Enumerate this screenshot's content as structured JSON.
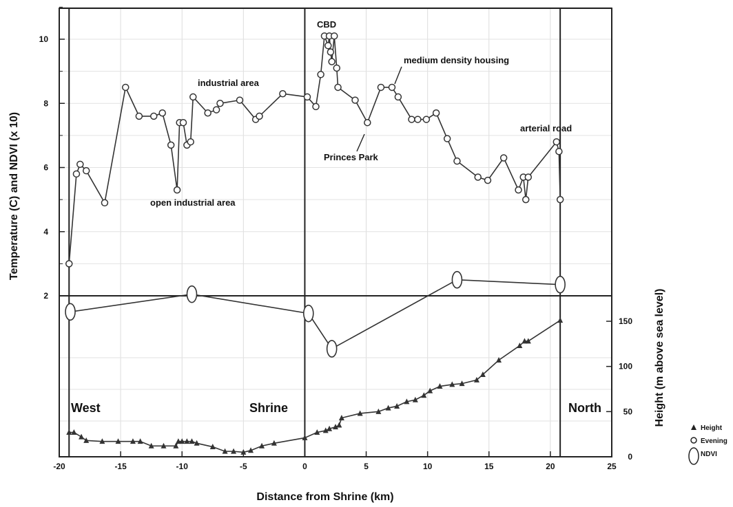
{
  "chart_data": {
    "type": "line",
    "xlabel": "Distance from Shrine (km)",
    "ylabel_left": "Temperature (C) and NDVI (x 10)",
    "ylabel_right": "Height (m above sea level)",
    "x_ticks": [
      "-20",
      "-15",
      "-10",
      "-5",
      "0",
      "5",
      "10",
      "15",
      "20",
      "25"
    ],
    "xlim": [
      -20,
      25
    ],
    "y_left_ticks": [
      "2",
      "4",
      "6",
      "8",
      "10"
    ],
    "y_left_range": [
      2,
      11
    ],
    "y_right_ticks": [
      "0",
      "50",
      "100",
      "150"
    ],
    "y_right_range": [
      0,
      185
    ],
    "regions": [
      "West",
      "Shrine",
      "North"
    ],
    "annotations": {
      "cbd": "CBD",
      "medium_density": "medium density housing",
      "industrial": "industrial area",
      "arterial": "arterial road",
      "princes_park": "Princes Park",
      "open_industrial": "open industrial area"
    },
    "legend": [
      "Height",
      "Evening",
      "NDVI"
    ],
    "series": [
      {
        "name": "Evening",
        "marker": "circle",
        "axis": "left",
        "x": [
          -19.2,
          -18.6,
          -18.3,
          -17.8,
          -16.3,
          -14.6,
          -13.5,
          -12.3,
          -11.6,
          -10.9,
          -10.4,
          -10.2,
          -9.9,
          -9.6,
          -9.3,
          -9.1,
          -7.9,
          -7.2,
          -6.9,
          -5.3,
          -4.0,
          -3.7,
          -1.8,
          0.2,
          0.9,
          1.3,
          1.6,
          1.9,
          2.0,
          2.1,
          2.2,
          2.4,
          2.6,
          2.7,
          4.1,
          5.1,
          6.2,
          7.1,
          7.6,
          8.7,
          9.2,
          9.9,
          10.7,
          11.6,
          12.4,
          14.1,
          14.9,
          16.2,
          17.4,
          17.8,
          18.0,
          18.2,
          20.5,
          20.7,
          20.8
        ],
        "y": [
          3.0,
          5.8,
          6.1,
          5.9,
          4.9,
          8.5,
          7.6,
          7.6,
          7.7,
          6.7,
          5.3,
          7.4,
          7.4,
          6.7,
          6.8,
          8.2,
          7.7,
          7.8,
          8.0,
          8.1,
          7.5,
          7.6,
          8.3,
          8.2,
          7.9,
          8.9,
          10.1,
          9.8,
          10.1,
          9.6,
          9.3,
          10.1,
          9.1,
          8.5,
          8.1,
          7.4,
          8.5,
          8.5,
          8.2,
          7.5,
          7.5,
          7.5,
          7.7,
          6.9,
          6.2,
          5.7,
          5.6,
          6.3,
          5.3,
          5.7,
          5.0,
          5.7,
          6.8,
          6.5,
          5.0
        ]
      },
      {
        "name": "NDVI",
        "marker": "ellipse",
        "axis": "left",
        "x": [
          -19.1,
          -9.2,
          0.3,
          2.2,
          12.4,
          20.8
        ],
        "y": [
          1.5,
          2.05,
          1.45,
          0.35,
          2.5,
          2.35
        ]
      },
      {
        "name": "Height",
        "marker": "triangle",
        "axis": "right",
        "x": [
          -19.2,
          -18.8,
          -18.2,
          -17.8,
          -16.5,
          -15.2,
          -14.0,
          -13.4,
          -12.5,
          -11.5,
          -10.5,
          -10.3,
          -10.0,
          -9.6,
          -9.2,
          -8.8,
          -7.5,
          -6.5,
          -5.8,
          -5.0,
          -4.4,
          -3.5,
          -2.5,
          0.0,
          1.0,
          1.7,
          2.0,
          2.5,
          2.8,
          3.0,
          4.5,
          6.0,
          6.8,
          7.5,
          8.3,
          9.0,
          9.7,
          10.2,
          11.0,
          12.0,
          12.8,
          14.0,
          14.5,
          15.8,
          17.5,
          17.9,
          18.2,
          20.8
        ],
        "y": [
          27,
          27,
          22,
          18,
          17,
          17,
          17,
          17,
          12,
          12,
          12,
          17,
          17,
          17,
          17,
          15,
          11,
          6,
          6,
          5,
          7,
          12,
          15,
          21,
          27,
          29,
          31,
          33,
          35,
          43,
          48,
          50,
          54,
          56,
          61,
          63,
          68,
          73,
          78,
          80,
          81,
          85,
          91,
          107,
          123,
          128,
          128,
          151
        ]
      }
    ],
    "vertical_lines_x": [
      -19.2,
      0,
      20.8
    ],
    "horizontal_line_y_left": 2
  }
}
